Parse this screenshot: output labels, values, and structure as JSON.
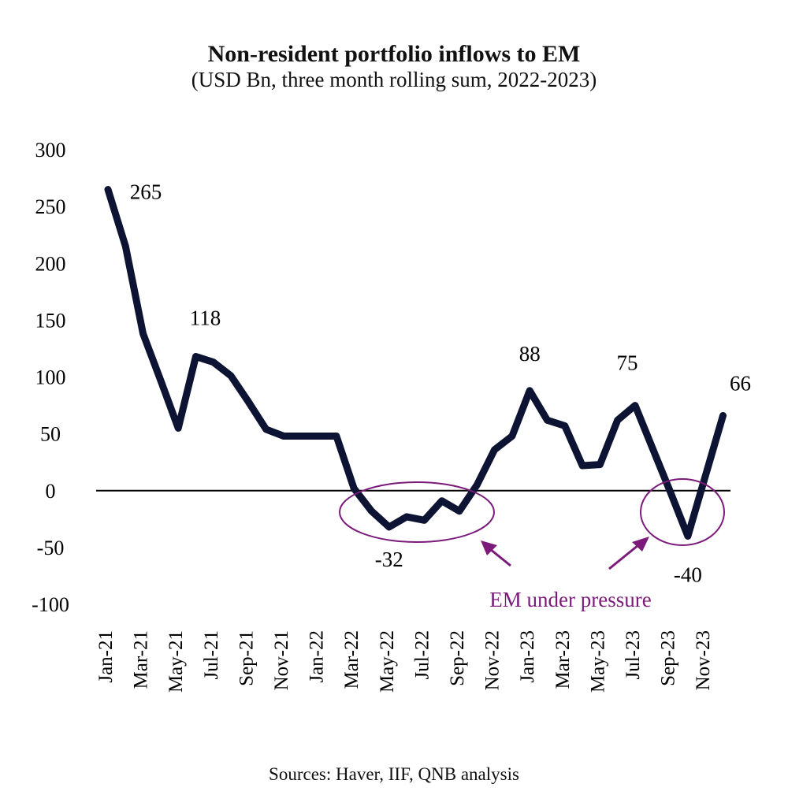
{
  "chart_data": {
    "type": "line",
    "title": "Non-resident portfolio inflows to EM",
    "subtitle": "(USD Bn, three month rolling sum, 2022-2023)",
    "source": "Sources: Haver, IIF, QNB analysis",
    "ylim": [
      -100,
      300
    ],
    "yticks": [
      300,
      250,
      200,
      150,
      100,
      50,
      0,
      -50,
      -100
    ],
    "xtick_labels": [
      "Jan-21",
      "Mar-21",
      "May-21",
      "Jul-21",
      "Sep-21",
      "Nov-21",
      "Jan-22",
      "Mar-22",
      "May-22",
      "Jul-22",
      "Sep-22",
      "Nov-22",
      "Jan-23",
      "Mar-23",
      "May-23",
      "Jul-23",
      "Sep-23",
      "Nov-23"
    ],
    "x": [
      "Jan-21",
      "Feb-21",
      "Mar-21",
      "Apr-21",
      "May-21",
      "Jun-21",
      "Jul-21",
      "Aug-21",
      "Sep-21",
      "Oct-21",
      "Nov-21",
      "Dec-21",
      "Jan-22",
      "Feb-22",
      "Mar-22",
      "Apr-22",
      "May-22",
      "Jun-22",
      "Jul-22",
      "Aug-22",
      "Sep-22",
      "Oct-22",
      "Nov-22",
      "Dec-22",
      "Jan-23",
      "Feb-23",
      "Mar-23",
      "Apr-23",
      "May-23",
      "Jun-23",
      "Jul-23",
      "Aug-23",
      "Sep-23",
      "Oct-23",
      "Nov-23",
      "Dec-23"
    ],
    "values": [
      265,
      215,
      138,
      97,
      55,
      118,
      113,
      101,
      78,
      54,
      48,
      48,
      48,
      48,
      2,
      -18,
      -32,
      -23,
      -26,
      -9,
      -18,
      5,
      36,
      48,
      88,
      62,
      57,
      22,
      23,
      62,
      75,
      37,
      -1,
      -40,
      13,
      66
    ],
    "grid": false,
    "line_color": "#0d1333",
    "annotation_color": "#7b1a7b",
    "data_labels": [
      {
        "index": 0,
        "text": "265"
      },
      {
        "index": 5,
        "text": "118"
      },
      {
        "index": 16,
        "text": "-32"
      },
      {
        "index": 24,
        "text": "88"
      },
      {
        "index": 30,
        "text": "75"
      },
      {
        "index": 33,
        "text": "-40"
      },
      {
        "index": 35,
        "text": "66"
      }
    ],
    "annotation": "EM under pressure"
  }
}
